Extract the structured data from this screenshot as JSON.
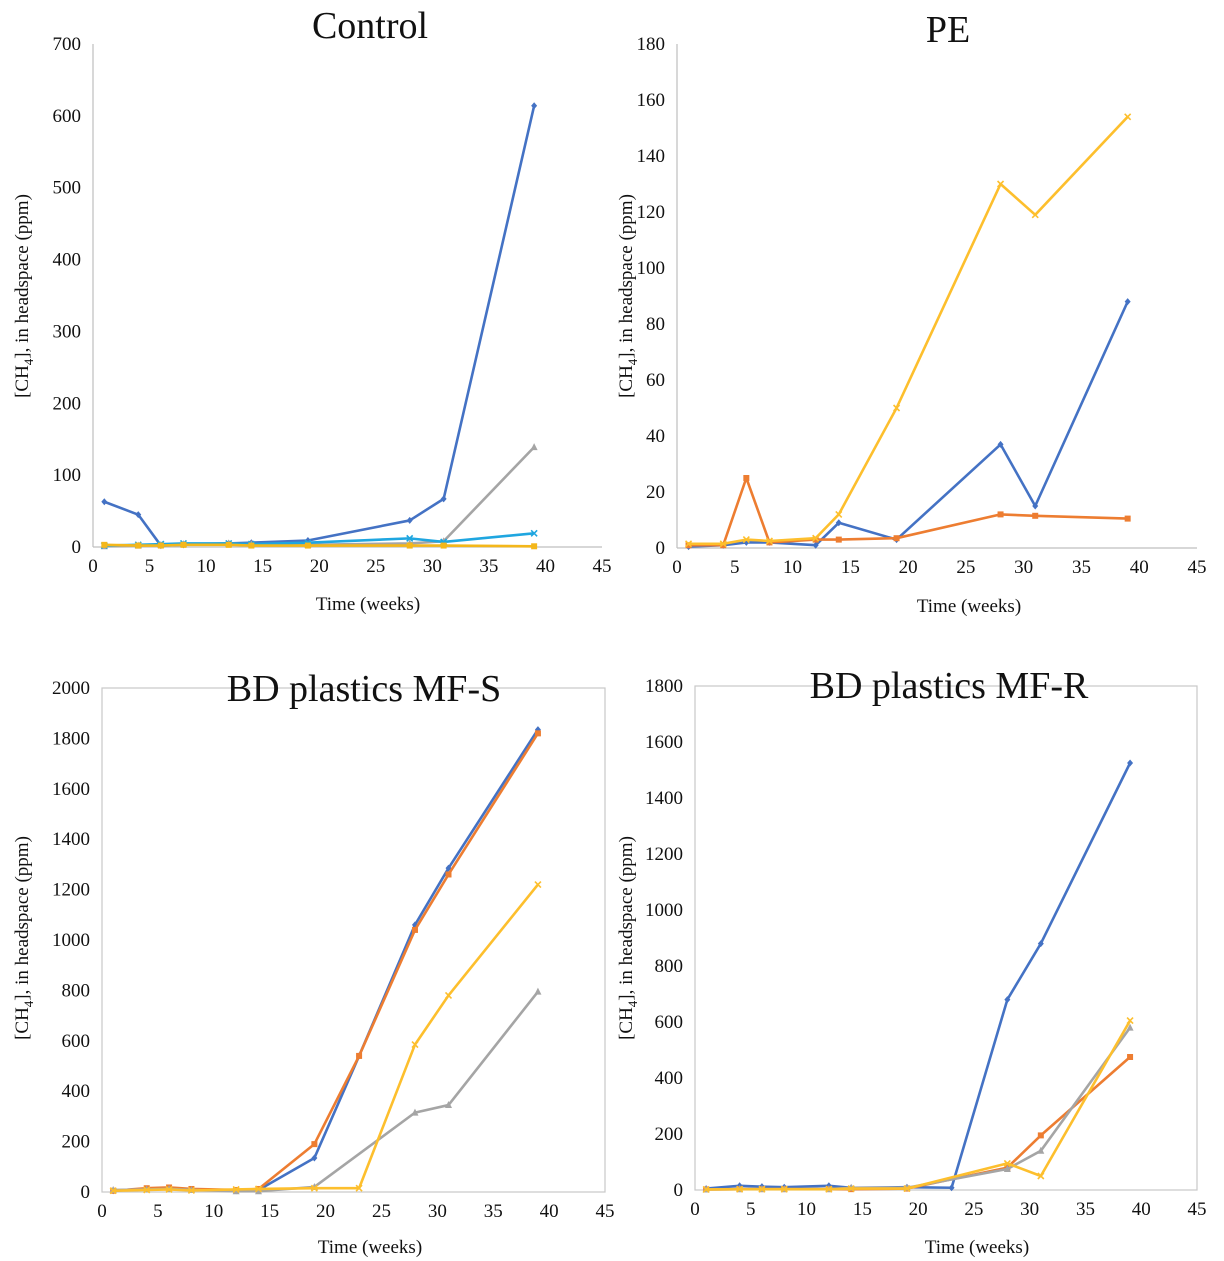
{
  "figure": {
    "subscript_four": "4"
  },
  "chart_data": [
    {
      "type": "line",
      "title": "Control",
      "xlabel": "Time (weeks)",
      "ylabel_prefix": "[CH",
      "ylabel_suffix": "], in headspace (ppm)",
      "xlim": [
        0,
        45
      ],
      "ylim": [
        0,
        700
      ],
      "xticks": [
        0,
        5,
        10,
        15,
        20,
        25,
        30,
        35,
        40,
        45
      ],
      "yticks": [
        0,
        100,
        200,
        300,
        400,
        500,
        600,
        700
      ],
      "frame": "left-bottom",
      "series": [
        {
          "color": "#4472c4",
          "marker": "diamond",
          "x": [
            1,
            4,
            6,
            8,
            12,
            14,
            19,
            28,
            31,
            39
          ],
          "y": [
            63,
            45,
            2,
            3,
            5,
            6,
            9,
            37,
            67,
            614
          ]
        },
        {
          "color": "#a5a5a5",
          "marker": "triangle",
          "x": [
            1,
            4,
            6,
            8,
            12,
            14,
            19,
            28,
            31,
            39
          ],
          "y": [
            1,
            2,
            3,
            4,
            5,
            4,
            3,
            5,
            8,
            139
          ]
        },
        {
          "color": "#1fa6e0",
          "marker": "x",
          "x": [
            1,
            4,
            6,
            8,
            12,
            14,
            19,
            28,
            31,
            39
          ],
          "y": [
            2,
            3,
            4,
            5,
            5,
            4,
            6,
            12,
            7,
            19
          ]
        },
        {
          "color": "#f4b71a",
          "marker": "square",
          "x": [
            1,
            4,
            6,
            8,
            12,
            14,
            19,
            28,
            31,
            39
          ],
          "y": [
            3,
            2,
            2,
            3,
            3,
            2,
            2,
            2,
            2,
            1
          ]
        }
      ]
    },
    {
      "type": "line",
      "title": "PE",
      "xlabel": "Time (weeks)",
      "ylabel_prefix": "[CH",
      "ylabel_suffix": "], in headspace (ppm)",
      "xlim": [
        0,
        45
      ],
      "ylim": [
        0,
        180
      ],
      "xticks": [
        0,
        5,
        10,
        15,
        20,
        25,
        30,
        35,
        40,
        45
      ],
      "yticks": [
        0,
        20,
        40,
        60,
        80,
        100,
        120,
        140,
        160,
        180
      ],
      "frame": "left-bottom",
      "series": [
        {
          "color": "#4472c4",
          "marker": "diamond",
          "x": [
            1,
            4,
            6,
            8,
            12,
            14,
            19,
            28,
            31,
            39
          ],
          "y": [
            0.5,
            1,
            2,
            2,
            1,
            9,
            3,
            37,
            15,
            88
          ]
        },
        {
          "color": "#ed7d31",
          "marker": "square",
          "x": [
            1,
            4,
            6,
            8,
            12,
            14,
            19,
            28,
            31,
            39
          ],
          "y": [
            1,
            1,
            25,
            2,
            3,
            3,
            3.5,
            12,
            11.5,
            10.5
          ]
        },
        {
          "color": "#fdbf2d",
          "marker": "x",
          "x": [
            1,
            4,
            6,
            8,
            12,
            14,
            19,
            28,
            31,
            39
          ],
          "y": [
            1.5,
            1.5,
            3,
            2.5,
            3.5,
            12,
            50,
            130,
            119,
            154
          ]
        }
      ]
    },
    {
      "type": "line",
      "title": "BD plastics MF-S",
      "xlabel": "Time (weeks)",
      "ylabel_prefix": "[CH",
      "ylabel_suffix": "], in headspace (ppm)",
      "xlim": [
        0,
        45
      ],
      "ylim": [
        0,
        2000
      ],
      "xticks": [
        0,
        5,
        10,
        15,
        20,
        25,
        30,
        35,
        40,
        45
      ],
      "yticks": [
        0,
        200,
        400,
        600,
        800,
        1000,
        1200,
        1400,
        1600,
        1800,
        2000
      ],
      "frame": "box",
      "series": [
        {
          "color": "#4472c4",
          "marker": "diamond",
          "x": [
            1,
            4,
            6,
            8,
            12,
            14,
            19,
            23,
            28,
            31,
            39
          ],
          "y": [
            5,
            12,
            15,
            10,
            5,
            8,
            135,
            540,
            1060,
            1285,
            1835
          ]
        },
        {
          "color": "#ed7d31",
          "marker": "square",
          "x": [
            1,
            4,
            6,
            8,
            12,
            14,
            19,
            23,
            28,
            31,
            39
          ],
          "y": [
            5,
            15,
            18,
            12,
            8,
            12,
            190,
            540,
            1040,
            1260,
            1820
          ]
        },
        {
          "color": "#a5a5a5",
          "marker": "triangle",
          "x": [
            1,
            4,
            6,
            8,
            12,
            14,
            19,
            28,
            31,
            39
          ],
          "y": [
            8,
            10,
            12,
            8,
            3,
            3,
            20,
            315,
            345,
            795
          ]
        },
        {
          "color": "#fdbf2d",
          "marker": "x",
          "x": [
            1,
            4,
            6,
            8,
            12,
            14,
            19,
            23,
            28,
            31,
            39
          ],
          "y": [
            5,
            8,
            10,
            6,
            10,
            12,
            15,
            15,
            585,
            780,
            1220
          ]
        }
      ]
    },
    {
      "type": "line",
      "title": "BD plastics MF-R",
      "xlabel": "Time (weeks)",
      "ylabel_prefix": "[CH",
      "ylabel_suffix": "], in headspace (ppm)",
      "xlim": [
        0,
        45
      ],
      "ylim": [
        0,
        1800
      ],
      "xticks": [
        0,
        5,
        10,
        15,
        20,
        25,
        30,
        35,
        40,
        45
      ],
      "yticks": [
        0,
        200,
        400,
        600,
        800,
        1000,
        1200,
        1400,
        1600,
        1800
      ],
      "frame": "box",
      "series": [
        {
          "color": "#4472c4",
          "marker": "diamond",
          "x": [
            1,
            4,
            6,
            8,
            12,
            14,
            19,
            23,
            28,
            31,
            39
          ],
          "y": [
            5,
            15,
            12,
            10,
            15,
            8,
            10,
            8,
            680,
            880,
            1525
          ]
        },
        {
          "color": "#ed7d31",
          "marker": "square",
          "x": [
            1,
            4,
            6,
            8,
            12,
            14,
            19,
            28,
            31,
            39
          ],
          "y": [
            2,
            3,
            3,
            3,
            3,
            3,
            5,
            80,
            195,
            475
          ]
        },
        {
          "color": "#a5a5a5",
          "marker": "triangle",
          "x": [
            1,
            4,
            6,
            8,
            12,
            14,
            19,
            28,
            31,
            39
          ],
          "y": [
            2,
            3,
            3,
            3,
            3,
            8,
            8,
            75,
            140,
            580
          ]
        },
        {
          "color": "#fdbf2d",
          "marker": "x",
          "x": [
            1,
            4,
            6,
            8,
            12,
            14,
            19,
            28,
            31,
            39
          ],
          "y": [
            2,
            3,
            3,
            3,
            3,
            5,
            5,
            95,
            50,
            605
          ]
        }
      ]
    }
  ]
}
